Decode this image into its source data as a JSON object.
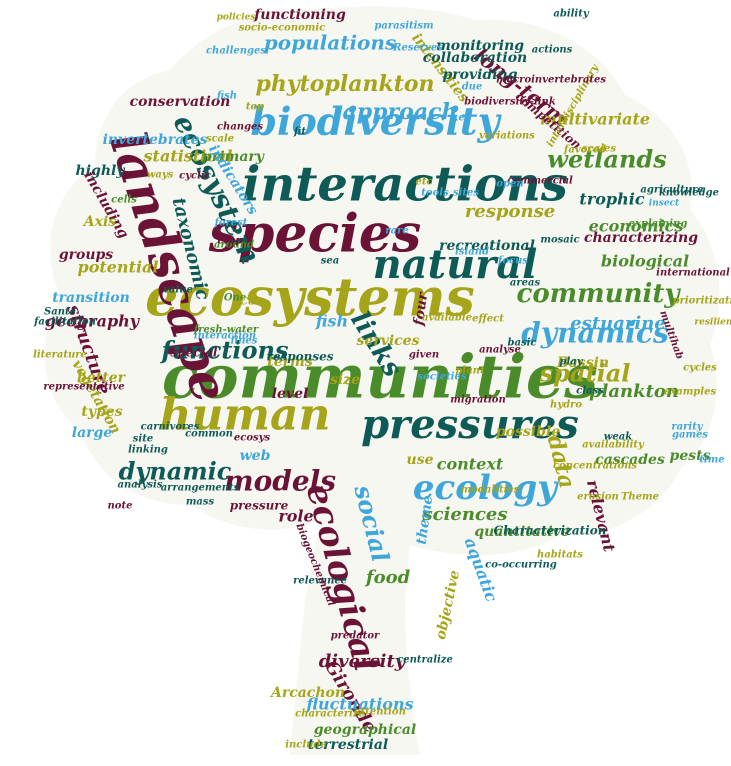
{
  "palette": {
    "dark_teal": "#0d5a57",
    "teal": "#12655f",
    "blue": "#3fa6da",
    "olive": "#a6a418",
    "green": "#4b8c2a",
    "maroon": "#6b1336"
  },
  "words": [
    {
      "text": "communities",
      "c": "green"
    },
    {
      "text": "ecosystems",
      "c": "olive"
    },
    {
      "text": "interactions",
      "c": "dark_teal"
    },
    {
      "text": "species",
      "c": "maroon"
    },
    {
      "text": "biodiversity",
      "c": "blue"
    },
    {
      "text": "landscape",
      "c": "maroon"
    },
    {
      "text": "human",
      "c": "olive"
    },
    {
      "text": "natural",
      "c": "dark_teal"
    },
    {
      "text": "pressures",
      "c": "dark_teal"
    },
    {
      "text": "ecology",
      "c": "blue"
    },
    {
      "text": "dynamics",
      "c": "blue"
    },
    {
      "text": "community",
      "c": "green"
    },
    {
      "text": "ecosystem",
      "c": "dark_teal"
    },
    {
      "text": "ecological",
      "c": "maroon"
    },
    {
      "text": "wetlands",
      "c": "green"
    },
    {
      "text": "spatial",
      "c": "olive"
    },
    {
      "text": "phytoplankton",
      "c": "olive"
    },
    {
      "text": "models",
      "c": "maroon"
    },
    {
      "text": "functions",
      "c": "dark_teal"
    },
    {
      "text": "populations",
      "c": "blue"
    },
    {
      "text": "social",
      "c": "blue"
    },
    {
      "text": "data",
      "c": "olive"
    },
    {
      "text": "links",
      "c": "dark_teal"
    },
    {
      "text": "approach",
      "c": "blue"
    },
    {
      "text": "long-term",
      "c": "maroon"
    },
    {
      "text": "estuarine",
      "c": "blue"
    },
    {
      "text": "dynamic",
      "c": "dark_teal"
    },
    {
      "text": "response",
      "c": "olive"
    },
    {
      "text": "sciences",
      "c": "green"
    },
    {
      "text": "structure",
      "c": "maroon"
    },
    {
      "text": "diversity",
      "c": "maroon"
    },
    {
      "text": "Gironde",
      "c": "maroon"
    },
    {
      "text": "fluctuations",
      "c": "blue"
    },
    {
      "text": "geography",
      "c": "maroon"
    },
    {
      "text": "potential",
      "c": "olive"
    },
    {
      "text": "biological",
      "c": "green"
    },
    {
      "text": "food",
      "c": "green"
    },
    {
      "text": "taxonomic",
      "c": "dark_teal"
    },
    {
      "text": "context",
      "c": "green"
    },
    {
      "text": "plankton",
      "c": "green"
    },
    {
      "text": "statistical",
      "c": "olive"
    },
    {
      "text": "trophic",
      "c": "dark_teal"
    },
    {
      "text": "services",
      "c": "olive"
    },
    {
      "text": "economics",
      "c": "green"
    },
    {
      "text": "fish",
      "c": "blue"
    },
    {
      "text": "intensities",
      "c": "olive"
    },
    {
      "text": "relevant",
      "c": "maroon"
    },
    {
      "text": "invertebrates",
      "c": "blue"
    },
    {
      "text": "monitoring",
      "c": "dark_teal"
    },
    {
      "text": "providing",
      "c": "dark_teal"
    },
    {
      "text": "collaboration",
      "c": "dark_teal"
    },
    {
      "text": "conservation",
      "c": "maroon"
    },
    {
      "text": "multivariate",
      "c": "olive"
    },
    {
      "text": "geographical",
      "c": "green"
    },
    {
      "text": "terrestrial",
      "c": "dark_teal"
    },
    {
      "text": "quantitative",
      "c": "green"
    },
    {
      "text": "aquatic",
      "c": "blue"
    },
    {
      "text": "possible",
      "c": "olive"
    },
    {
      "text": "level",
      "c": "maroon"
    },
    {
      "text": "role",
      "c": "maroon"
    },
    {
      "text": "theme",
      "c": "blue"
    },
    {
      "text": "use",
      "c": "olive"
    },
    {
      "text": "four",
      "c": "maroon"
    },
    {
      "text": "size",
      "c": "olive"
    },
    {
      "text": "Arcachon",
      "c": "olive"
    },
    {
      "text": "cascades",
      "c": "green"
    },
    {
      "text": "pests",
      "c": "green"
    },
    {
      "text": "Bassin",
      "c": "olive"
    },
    {
      "text": "primary",
      "c": "green"
    },
    {
      "text": "indicators",
      "c": "blue"
    },
    {
      "text": "highly",
      "c": "dark_teal"
    },
    {
      "text": "including",
      "c": "maroon"
    },
    {
      "text": "Axis",
      "c": "olive"
    },
    {
      "text": "groups",
      "c": "maroon"
    },
    {
      "text": "transition",
      "c": "blue"
    },
    {
      "text": "vegetation",
      "c": "olive"
    },
    {
      "text": "types",
      "c": "olive"
    },
    {
      "text": "large",
      "c": "blue"
    },
    {
      "text": "web",
      "c": "blue"
    },
    {
      "text": "recreational",
      "c": "dark_teal"
    },
    {
      "text": "characterizing",
      "c": "maroon"
    },
    {
      "text": "functioning",
      "c": "maroon"
    },
    {
      "text": "better",
      "c": "olive"
    },
    {
      "text": "terms",
      "c": "olive"
    },
    {
      "text": "responses",
      "c": "dark_teal"
    },
    {
      "text": "special",
      "c": "maroon"
    },
    {
      "text": "Characterization",
      "c": "dark_teal"
    },
    {
      "text": "competition",
      "c": "maroon"
    },
    {
      "text": "objective",
      "c": "olive"
    },
    {
      "text": "pressure",
      "c": "maroon"
    },
    {
      "text": "co-occurring",
      "c": "dark_teal"
    },
    {
      "text": "interdisciplinary",
      "c": "olive"
    },
    {
      "text": "policies",
      "c": "olive"
    },
    {
      "text": "socio-economic",
      "c": "olive"
    },
    {
      "text": "challenges",
      "c": "blue"
    },
    {
      "text": "parasitism",
      "c": "blue"
    },
    {
      "text": "Reserves",
      "c": "blue"
    },
    {
      "text": "actions",
      "c": "dark_teal"
    },
    {
      "text": "ability",
      "c": "dark_teal"
    },
    {
      "text": "knowledge",
      "c": "dark_teal"
    },
    {
      "text": "agriculture",
      "c": "dark_teal"
    },
    {
      "text": "resilience",
      "c": "olive"
    },
    {
      "text": "prioritization",
      "c": "olive"
    },
    {
      "text": "multihab",
      "c": "maroon"
    },
    {
      "text": "cycles",
      "c": "olive"
    },
    {
      "text": "examples",
      "c": "olive"
    },
    {
      "text": "rarity",
      "c": "blue"
    },
    {
      "text": "time",
      "c": "blue"
    },
    {
      "text": "insect",
      "c": "blue"
    },
    {
      "text": "explaining",
      "c": "green"
    },
    {
      "text": "international",
      "c": "maroon"
    },
    {
      "text": "variations",
      "c": "olive"
    },
    {
      "text": "favored",
      "c": "olive"
    },
    {
      "text": "mass",
      "c": "dark_teal"
    },
    {
      "text": "analysis",
      "c": "dark_teal"
    },
    {
      "text": "common",
      "c": "dark_teal"
    },
    {
      "text": "carnivores",
      "c": "dark_teal"
    },
    {
      "text": "site",
      "c": "dark_teal"
    },
    {
      "text": "sites",
      "c": "blue"
    },
    {
      "text": "modalities",
      "c": "olive"
    },
    {
      "text": "concentrations",
      "c": "olive"
    },
    {
      "text": "erosion",
      "c": "olive"
    },
    {
      "text": "availability",
      "c": "olive"
    },
    {
      "text": "Theme",
      "c": "olive"
    },
    {
      "text": "linking",
      "c": "dark_teal"
    },
    {
      "text": "games",
      "c": "blue"
    },
    {
      "text": "island",
      "c": "blue"
    },
    {
      "text": "around",
      "c": "green"
    },
    {
      "text": "facilitation",
      "c": "dark_teal"
    },
    {
      "text": "literature",
      "c": "olive"
    },
    {
      "text": "arrangements",
      "c": "dark_teal"
    },
    {
      "text": "include",
      "c": "olive"
    },
    {
      "text": "characterize",
      "c": "olive"
    },
    {
      "text": "centralize",
      "c": "dark_teal"
    },
    {
      "text": "relevance",
      "c": "dark_teal"
    },
    {
      "text": "biogeochemical",
      "c": "maroon"
    },
    {
      "text": "interaction",
      "c": "blue"
    },
    {
      "text": "play",
      "c": "dark_teal"
    },
    {
      "text": "lines",
      "c": "blue"
    },
    {
      "text": "plant",
      "c": "olive"
    },
    {
      "text": "available",
      "c": "olive"
    },
    {
      "text": "societies",
      "c": "blue"
    },
    {
      "text": "representative",
      "c": "maroon"
    },
    {
      "text": "biodiversity-link",
      "c": "maroon"
    },
    {
      "text": "macroinvertebrates",
      "c": "maroon"
    },
    {
      "text": "scales",
      "c": "olive"
    },
    {
      "text": "tools",
      "c": "blue"
    },
    {
      "text": "commercial",
      "c": "maroon"
    },
    {
      "text": "cyclic",
      "c": "maroon"
    },
    {
      "text": "scale",
      "c": "olive"
    },
    {
      "text": "changes",
      "c": "maroon"
    },
    {
      "text": "forest",
      "c": "blue"
    },
    {
      "text": "crop",
      "c": "maroon"
    },
    {
      "text": "cells",
      "c": "green"
    },
    {
      "text": "ways",
      "c": "olive"
    },
    {
      "text": "fresh-water",
      "c": "green"
    },
    {
      "text": "One",
      "c": "green"
    },
    {
      "text": "Can",
      "c": "olive"
    },
    {
      "text": "sea",
      "c": "dark_teal"
    },
    {
      "text": "fit",
      "c": "dark_teal"
    },
    {
      "text": "top",
      "c": "olive"
    },
    {
      "text": "fish",
      "c": "blue"
    },
    {
      "text": "key",
      "c": "blue"
    },
    {
      "text": "due",
      "c": "blue"
    },
    {
      "text": "etc",
      "c": "olive"
    },
    {
      "text": "rare",
      "c": "blue"
    },
    {
      "text": "open",
      "c": "blue"
    },
    {
      "text": "focus",
      "c": "blue"
    },
    {
      "text": "given",
      "c": "maroon"
    },
    {
      "text": "analyse",
      "c": "maroon"
    },
    {
      "text": "class",
      "c": "dark_teal"
    },
    {
      "text": "basic",
      "c": "dark_teal"
    },
    {
      "text": "hydro",
      "c": "olive"
    },
    {
      "text": "areas",
      "c": "dark_teal"
    },
    {
      "text": "effect",
      "c": "olive"
    },
    {
      "text": "mosaic",
      "c": "dark_teal"
    },
    {
      "text": "weak",
      "c": "dark_teal"
    },
    {
      "text": "note",
      "c": "maroon"
    },
    {
      "text": "Santé",
      "c": "dark_teal"
    },
    {
      "text": "value",
      "c": "dark_teal"
    },
    {
      "text": "ecosys",
      "c": "maroon"
    },
    {
      "text": "attention",
      "c": "olive"
    },
    {
      "text": "predator",
      "c": "maroon"
    },
    {
      "text": "migration",
      "c": "maroon"
    },
    {
      "text": "habitats",
      "c": "olive"
    }
  ]
}
